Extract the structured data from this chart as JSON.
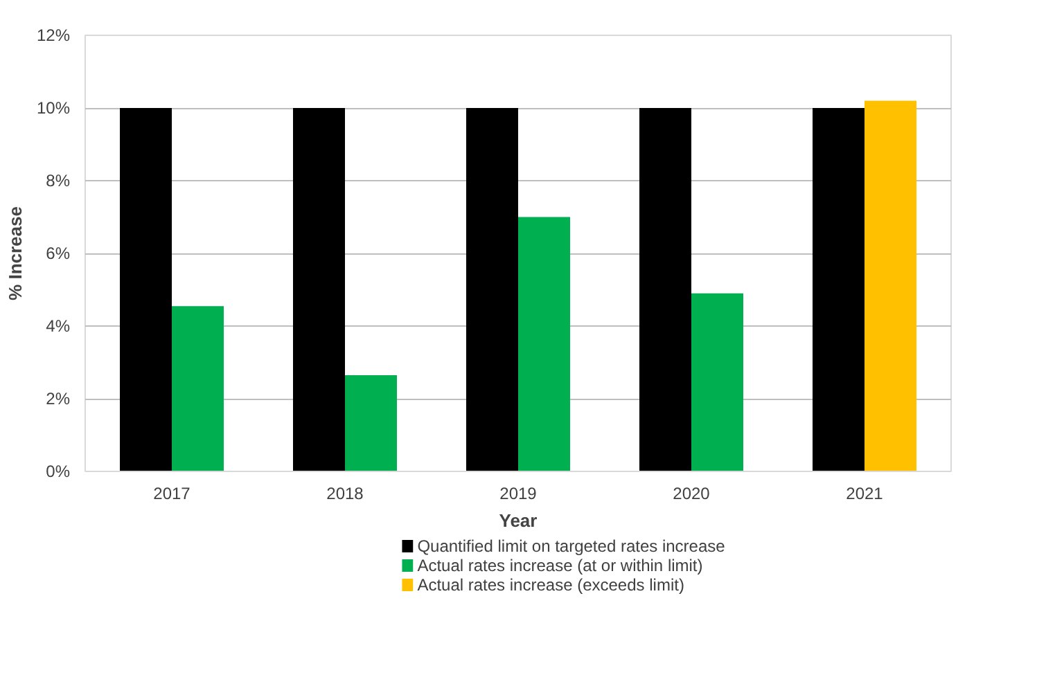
{
  "chart_data": {
    "type": "bar",
    "xlabel": "Year",
    "ylabel": "% Increase",
    "categories": [
      "2017",
      "2018",
      "2019",
      "2020",
      "2021"
    ],
    "series": [
      {
        "name": "Quantified limit on targeted rates increase",
        "color": "#000000",
        "values": [
          10,
          10,
          10,
          10,
          10
        ]
      },
      {
        "name": "Actual rates increase (at or within limit)",
        "color": "#00b050",
        "values": [
          4.55,
          2.65,
          7.0,
          4.9,
          null
        ]
      },
      {
        "name": "Actual rates increase (exceeds limit)",
        "color": "#ffc000",
        "values": [
          null,
          null,
          null,
          null,
          10.2
        ]
      }
    ],
    "ylim": [
      0,
      12
    ],
    "yticks": [
      {
        "value": 0,
        "label": "0%"
      },
      {
        "value": 2,
        "label": "2%"
      },
      {
        "value": 4,
        "label": "4%"
      },
      {
        "value": 6,
        "label": "6%"
      },
      {
        "value": 8,
        "label": "8%"
      },
      {
        "value": 10,
        "label": "10%"
      },
      {
        "value": 12,
        "label": "12%"
      }
    ],
    "grid": "y",
    "legend": "bottom"
  }
}
